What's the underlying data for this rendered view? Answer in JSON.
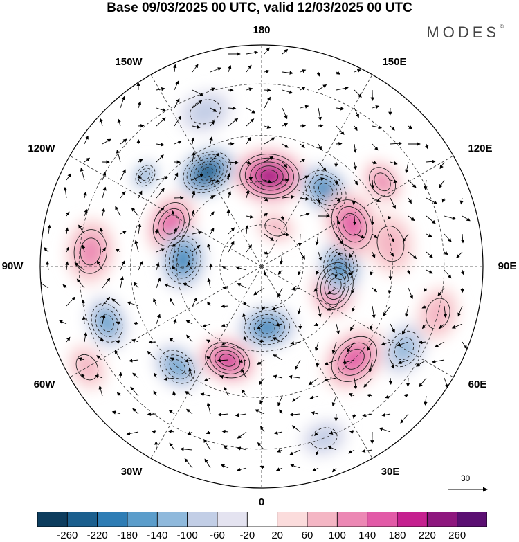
{
  "title": "Base 09/03/2025 00 UTC, valid 12/03/2025 00 UTC",
  "brand": "MODES",
  "brand_mark": "©",
  "longitude_labels": [
    "180",
    "150E",
    "120E",
    "90E",
    "60E",
    "30E",
    "0",
    "30W",
    "60W",
    "90W",
    "120W",
    "150W"
  ],
  "vector_scale_value": "30",
  "colorbar": {
    "ticks": [
      "-260",
      "-220",
      "-180",
      "-140",
      "-100",
      "-60",
      "-20",
      "20",
      "60",
      "100",
      "140",
      "180",
      "220",
      "260"
    ],
    "colors": [
      "#0d3d5e",
      "#1b5f8e",
      "#2e7db5",
      "#5b9dcb",
      "#8fb9dc",
      "#c2cee6",
      "#e4e3f0",
      "#ffffff",
      "#fbdcdc",
      "#f4b6c4",
      "#ec88b4",
      "#e25aa7",
      "#c5208f",
      "#8e177e",
      "#5b0f72"
    ]
  },
  "map": {
    "anomalies": [
      {
        "lon": 175,
        "lat": 58,
        "value": 240,
        "r": 48
      },
      {
        "lon": 140,
        "lat": 55,
        "value": -200,
        "r": 38
      },
      {
        "lon": -150,
        "lat": 52,
        "value": -260,
        "r": 40
      },
      {
        "lon": -128,
        "lat": 40,
        "value": -160,
        "r": 20
      },
      {
        "lon": -115,
        "lat": 55,
        "value": 160,
        "r": 40
      },
      {
        "lon": -95,
        "lat": 33,
        "value": 120,
        "r": 42
      },
      {
        "lon": -95,
        "lat": 62,
        "value": -180,
        "r": 40
      },
      {
        "lon": -70,
        "lat": 35,
        "value": -140,
        "r": 35
      },
      {
        "lon": -40,
        "lat": 45,
        "value": -140,
        "r": 34
      },
      {
        "lon": -20,
        "lat": 55,
        "value": 200,
        "r": 38
      },
      {
        "lon": 5,
        "lat": 68,
        "value": -180,
        "r": 38
      },
      {
        "lon": 45,
        "lat": 45,
        "value": 160,
        "r": 45
      },
      {
        "lon": 75,
        "lat": 63,
        "value": 180,
        "r": 40
      },
      {
        "lon": 90,
        "lat": 62,
        "value": -200,
        "r": 38
      },
      {
        "lon": 115,
        "lat": 55,
        "value": 140,
        "r": 45
      },
      {
        "lon": 100,
        "lat": 45,
        "value": 80,
        "r": 40
      },
      {
        "lon": 60,
        "lat": 35,
        "value": -100,
        "r": 36
      },
      {
        "lon": 125,
        "lat": 40,
        "value": 120,
        "r": 30
      },
      {
        "lon": 160,
        "lat": 75,
        "value": 60,
        "r": 25
      },
      {
        "lon": -160,
        "lat": 35,
        "value": -80,
        "r": 35
      },
      {
        "lon": -60,
        "lat": 25,
        "value": 80,
        "r": 30
      },
      {
        "lon": 20,
        "lat": 30,
        "value": -60,
        "r": 30
      },
      {
        "lon": 75,
        "lat": 30,
        "value": 60,
        "r": 35
      }
    ]
  }
}
